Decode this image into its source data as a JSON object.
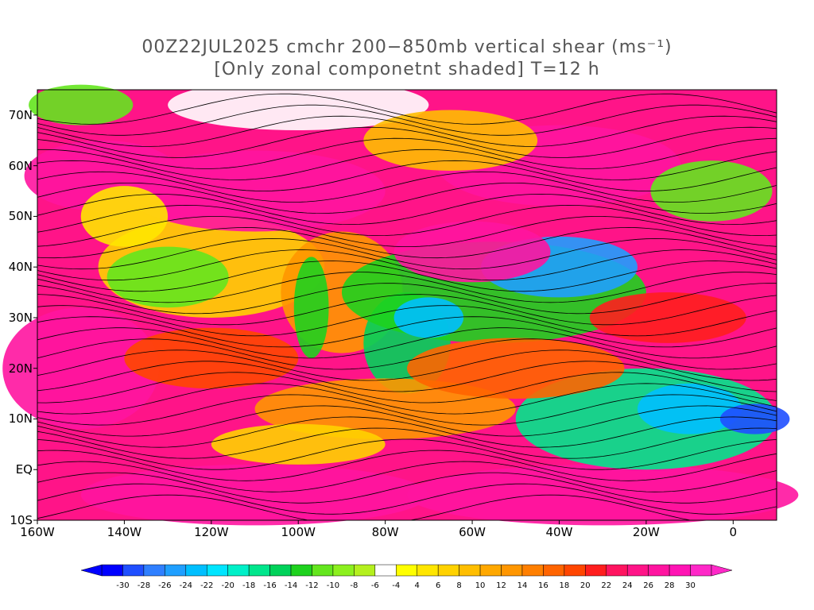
{
  "title": {
    "line1": "00Z22JUL2025 cmchr 200−850mb vertical shear (ms⁻¹)",
    "line2": "[Only zonal componetnt shaded] T=12 h"
  },
  "map": {
    "projection": "lat-lon",
    "lon_range": [
      -160,
      10
    ],
    "lat_range": [
      -10,
      75
    ],
    "lat_labels": [
      "70N",
      "60N",
      "50N",
      "40N",
      "30N",
      "20N",
      "10N",
      "EQ",
      "10S"
    ],
    "lat_values": [
      70,
      60,
      50,
      40,
      30,
      20,
      10,
      0,
      -10
    ],
    "lon_labels": [
      "160W",
      "140W",
      "120W",
      "100W",
      "80W",
      "60W",
      "40W",
      "20W",
      "0"
    ],
    "lon_values": [
      -160,
      -140,
      -120,
      -100,
      -80,
      -60,
      -40,
      -20,
      0
    ],
    "shaded_field": "zonal component of 200-850mb vertical shear",
    "overlay": "shear streamlines"
  },
  "colorbar": {
    "levels": [
      "-30",
      "-28",
      "-26",
      "-24",
      "-22",
      "-20",
      "-18",
      "-16",
      "-14",
      "-12",
      "-10",
      "-8",
      "-6",
      "-4",
      "4",
      "6",
      "8",
      "10",
      "12",
      "14",
      "16",
      "18",
      "20",
      "22",
      "24",
      "26",
      "28",
      "30"
    ],
    "colors": [
      "#0000ff",
      "#1f4fff",
      "#2f7fff",
      "#1f9fff",
      "#00bfff",
      "#00e5ff",
      "#00f0c8",
      "#00e68c",
      "#00d25a",
      "#1ed21e",
      "#64e61e",
      "#8cf01e",
      "#b4f01e",
      "#ffffff",
      "#ffff00",
      "#ffe600",
      "#ffd200",
      "#ffbe00",
      "#ffa800",
      "#ff9600",
      "#ff7f00",
      "#ff6400",
      "#ff4600",
      "#ff1e1e",
      "#ff1460",
      "#ff1488",
      "#ff14a0",
      "#ff14b4",
      "#ff28c8"
    ]
  }
}
